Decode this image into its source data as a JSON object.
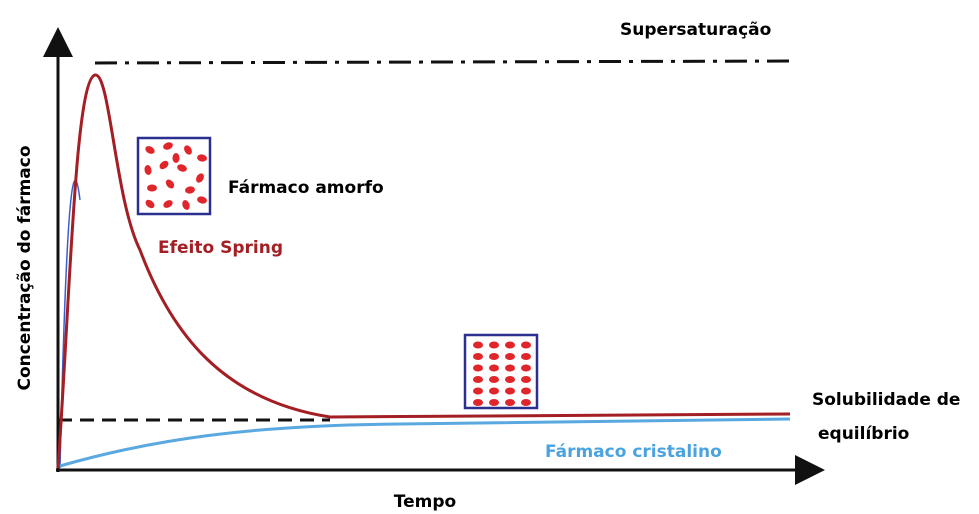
{
  "labels": {
    "supersaturation": "Supersaturação",
    "amorphous": "Fármaco amorfo",
    "spring": "Efeito Spring",
    "equilibrium": [
      "Solubilidade de",
      "equilíbrio"
    ],
    "crystalline": "Fármaco cristalino",
    "y_axis": "Concentração do fármaco",
    "x_axis": "Tempo"
  }
}
